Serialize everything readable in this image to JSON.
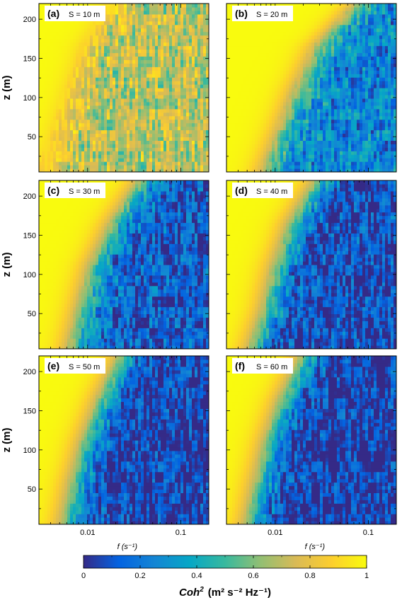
{
  "chart_data": [
    {
      "type": "heatmap",
      "panel": "(a)",
      "separation_label": "S = 10 m",
      "xlabel": "",
      "ylabel": "z (m)",
      "xlim": [
        0.003,
        0.2
      ],
      "ylim": [
        5,
        220
      ],
      "x_scale": "log",
      "x_ticks": [],
      "y_ticks": [
        50,
        100,
        150,
        200
      ],
      "low_coh_floor": 0.7,
      "transition_f": [
        0.0035,
        0.005,
        0.007,
        0.01,
        0.02
      ]
    },
    {
      "type": "heatmap",
      "panel": "(b)",
      "separation_label": "S = 20 m",
      "xlabel": "",
      "ylabel": "",
      "xlim": [
        0.003,
        0.2
      ],
      "ylim": [
        5,
        220
      ],
      "x_scale": "log",
      "x_ticks": [],
      "y_ticks": [],
      "low_coh_floor": 0.25,
      "transition_f": [
        0.008,
        0.012,
        0.018,
        0.03,
        0.08
      ]
    },
    {
      "type": "heatmap",
      "panel": "(c)",
      "separation_label": "S = 30 m",
      "xlabel": "",
      "ylabel": "z (m)",
      "xlim": [
        0.003,
        0.2
      ],
      "ylim": [
        5,
        220
      ],
      "x_scale": "log",
      "x_ticks": [],
      "y_ticks": [
        50,
        100,
        150,
        200
      ],
      "low_coh_floor": 0.12,
      "transition_f": [
        0.007,
        0.009,
        0.012,
        0.02,
        0.04
      ]
    },
    {
      "type": "heatmap",
      "panel": "(d)",
      "separation_label": "S = 40 m",
      "xlabel": "",
      "ylabel": "",
      "xlim": [
        0.003,
        0.2
      ],
      "ylim": [
        5,
        220
      ],
      "x_scale": "log",
      "x_ticks": [],
      "y_ticks": [],
      "low_coh_floor": 0.08,
      "transition_f": [
        0.006,
        0.0085,
        0.011,
        0.016,
        0.03
      ]
    },
    {
      "type": "heatmap",
      "panel": "(e)",
      "separation_label": "S = 50 m",
      "xlabel": "f (s⁻¹)",
      "ylabel": "z (m)",
      "xlim": [
        0.003,
        0.2
      ],
      "ylim": [
        5,
        220
      ],
      "x_scale": "log",
      "x_ticks": [
        0.01,
        0.1
      ],
      "x_tick_labels": [
        "0.01",
        "0.1"
      ],
      "y_ticks": [
        50,
        100,
        150,
        200
      ],
      "low_coh_floor": 0.05,
      "transition_f": [
        0.006,
        0.0075,
        0.01,
        0.015,
        0.025
      ]
    },
    {
      "type": "heatmap",
      "panel": "(f)",
      "separation_label": "S = 60 m",
      "xlabel": "f (s⁻¹)",
      "ylabel": "",
      "xlim": [
        0.003,
        0.2
      ],
      "ylim": [
        5,
        220
      ],
      "x_scale": "log",
      "x_ticks": [
        0.01,
        0.1
      ],
      "x_tick_labels": [
        "0.01",
        "0.1"
      ],
      "y_ticks": [],
      "low_coh_floor": 0.03,
      "transition_f": [
        0.0055,
        0.007,
        0.009,
        0.013,
        0.022
      ]
    }
  ],
  "colorbar": {
    "label": "Coh² (m² s⁻² Hz⁻¹)",
    "label_main": "Coh",
    "label_sup": "2",
    "label_units": "(m² s⁻² Hz⁻¹)",
    "range": [
      0,
      1
    ],
    "ticks": [
      0,
      0.2,
      0.4,
      0.6,
      0.8,
      1
    ],
    "tick_labels": [
      "0",
      "0.2",
      "0.4",
      "0.6",
      "0.8",
      "1"
    ],
    "colormap": "parula",
    "colors": [
      "#352a87",
      "#0363e1",
      "#1485d4",
      "#06a7c6",
      "#38b99e",
      "#92bf73",
      "#d9ba56",
      "#fcce2e",
      "#f9fb0e"
    ]
  },
  "x_axis_label": "f (s⁻¹)",
  "y_axis_label": "z (m)"
}
